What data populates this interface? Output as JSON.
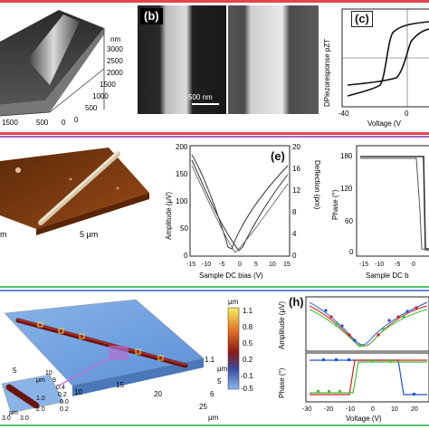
{
  "colors": {
    "divider_red": "#e0474c",
    "divider_purple": "#a064c8",
    "divider_green": "#54c46a",
    "divider_blue": "#5a8de0"
  },
  "row1": {
    "panel_a": {
      "axis_unit": "nm",
      "z_ticks": [
        "3000",
        "2500",
        "2000",
        "1500",
        "1000",
        "500",
        "0"
      ],
      "x_ticks": [
        "1500",
        "500",
        "0"
      ]
    },
    "panel_b": {
      "label": "(b)",
      "scale_bar": "500 nm"
    },
    "panel_c": {
      "label": "(c)",
      "ylabel": "DPiezoresponse pZT",
      "xlabel": "Voltage (V",
      "x_ticks": [
        "-40",
        "0"
      ]
    }
  },
  "row2": {
    "panel_d": {
      "scale_label": "5 μm",
      "left_fragment": "m"
    },
    "panel_e": {
      "label": "(e)",
      "ylabel_left": "Amplitude (μV)",
      "ylabel_right": "Deflection (pm)",
      "xlabel": "Sample DC bias (V)",
      "y_ticks_left": [
        "200",
        "150",
        "100",
        "50",
        "0"
      ],
      "y_ticks_right": [
        "20",
        "16",
        "12",
        "8",
        "4",
        "0"
      ],
      "x_ticks": [
        "-15",
        "-10",
        "-5",
        "0",
        "5",
        "10",
        "15"
      ]
    },
    "panel_f": {
      "ylabel": "Phase (°)",
      "xlabel": "Sample DC b",
      "y_ticks": [
        "180",
        "120",
        "60",
        "0"
      ],
      "x_ticks": [
        "-15",
        "-10",
        "-5",
        "0"
      ]
    }
  },
  "row3": {
    "panel_g": {
      "colorbar_unit": "μm",
      "colorbar_ticks": [
        "1.1",
        "0.8",
        "0.5",
        "0.2",
        "-0.1",
        "-0.5"
      ],
      "axis_labels": [
        "5",
        "10",
        "15",
        "20",
        "25",
        "6",
        "5",
        "μm",
        "μm",
        "1.1"
      ],
      "inset_ticks": [
        "10",
        "9",
        "0.4",
        "0.2",
        "0.0",
        "0.2",
        "μm",
        "1.0",
        "2.0",
        "3.0",
        "3.0",
        "μm"
      ]
    },
    "panel_h": {
      "label": "(h)",
      "ylabel_top": "Amplitude (μV)",
      "ylabel_bottom": "Phase (°)",
      "xlabel": "Voltage (V)",
      "x_ticks": [
        "-30",
        "-20",
        "-10",
        "0",
        "10",
        "20"
      ]
    }
  }
}
